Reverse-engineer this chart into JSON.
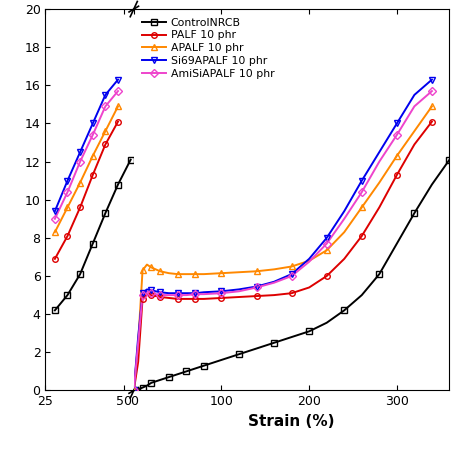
{
  "xlabel": "Strain (%)",
  "ylim": [
    0,
    20
  ],
  "yticks": [
    0,
    2,
    4,
    6,
    8,
    10,
    12,
    14,
    16,
    18,
    20
  ],
  "background_color": "#ffffff",
  "series": [
    {
      "label": "ControlNRCB",
      "color": "#000000",
      "marker": "s",
      "x": [
        0,
        5,
        10,
        15,
        20,
        30,
        40,
        50,
        60,
        70,
        80,
        100,
        120,
        140,
        160,
        180,
        200,
        220,
        240,
        260,
        280,
        300,
        320,
        340,
        360
      ],
      "y": [
        0,
        0.05,
        0.15,
        0.25,
        0.4,
        0.55,
        0.7,
        0.85,
        1.0,
        1.15,
        1.3,
        1.6,
        1.9,
        2.2,
        2.5,
        2.8,
        3.1,
        3.55,
        4.2,
        5.0,
        6.1,
        7.7,
        9.3,
        10.8,
        12.1
      ]
    },
    {
      "label": "PALF 10 phr",
      "color": "#dd0000",
      "marker": "o",
      "x": [
        0,
        5,
        10,
        15,
        20,
        25,
        30,
        40,
        50,
        60,
        70,
        80,
        100,
        120,
        140,
        160,
        180,
        200,
        220,
        240,
        260,
        280,
        300,
        320,
        340
      ],
      "y": [
        0,
        1.5,
        4.8,
        5.05,
        5.0,
        4.95,
        4.9,
        4.85,
        4.8,
        4.8,
        4.8,
        4.8,
        4.85,
        4.9,
        4.95,
        5.0,
        5.1,
        5.4,
        6.0,
        6.9,
        8.1,
        9.6,
        11.3,
        12.9,
        14.1
      ]
    },
    {
      "label": "APALF 10 phr",
      "color": "#ff8800",
      "marker": "^",
      "x": [
        0,
        5,
        10,
        15,
        20,
        25,
        30,
        40,
        50,
        60,
        70,
        80,
        100,
        120,
        140,
        160,
        180,
        200,
        220,
        240,
        260,
        280,
        300,
        320,
        340
      ],
      "y": [
        0,
        2.5,
        6.3,
        6.6,
        6.45,
        6.35,
        6.25,
        6.15,
        6.1,
        6.1,
        6.1,
        6.1,
        6.15,
        6.2,
        6.25,
        6.35,
        6.5,
        6.8,
        7.35,
        8.3,
        9.6,
        10.9,
        12.3,
        13.6,
        14.9
      ]
    },
    {
      "label": "Si69APALF 10 phr",
      "color": "#0000ee",
      "marker": "v",
      "x": [
        0,
        5,
        10,
        15,
        20,
        25,
        30,
        40,
        50,
        60,
        70,
        80,
        100,
        120,
        140,
        160,
        180,
        200,
        220,
        240,
        260,
        280,
        300,
        320,
        340
      ],
      "y": [
        0,
        2.8,
        5.1,
        5.3,
        5.25,
        5.2,
        5.15,
        5.1,
        5.1,
        5.1,
        5.1,
        5.15,
        5.2,
        5.3,
        5.45,
        5.7,
        6.1,
        6.9,
        8.0,
        9.4,
        11.0,
        12.5,
        14.0,
        15.5,
        16.3
      ]
    },
    {
      "label": "AmiSiAPALF 10 phr",
      "color": "#ee44cc",
      "marker": "D",
      "x": [
        0,
        5,
        10,
        15,
        20,
        25,
        30,
        40,
        50,
        60,
        70,
        80,
        100,
        120,
        140,
        160,
        180,
        200,
        220,
        240,
        260,
        280,
        300,
        320,
        340
      ],
      "y": [
        0,
        2.5,
        5.0,
        5.2,
        5.1,
        5.05,
        5.0,
        5.0,
        5.0,
        5.0,
        5.05,
        5.05,
        5.1,
        5.2,
        5.4,
        5.65,
        6.0,
        6.75,
        7.7,
        9.0,
        10.4,
        12.0,
        13.4,
        14.9,
        15.7
      ]
    }
  ],
  "left_xlim": [
    225,
    360
  ],
  "right_xlim": [
    0,
    360
  ],
  "right_xticks": [
    0,
    100,
    200,
    300
  ],
  "left_xticks": [
    225,
    350
  ],
  "left_xtick_labels": [
    "25",
    "50"
  ]
}
